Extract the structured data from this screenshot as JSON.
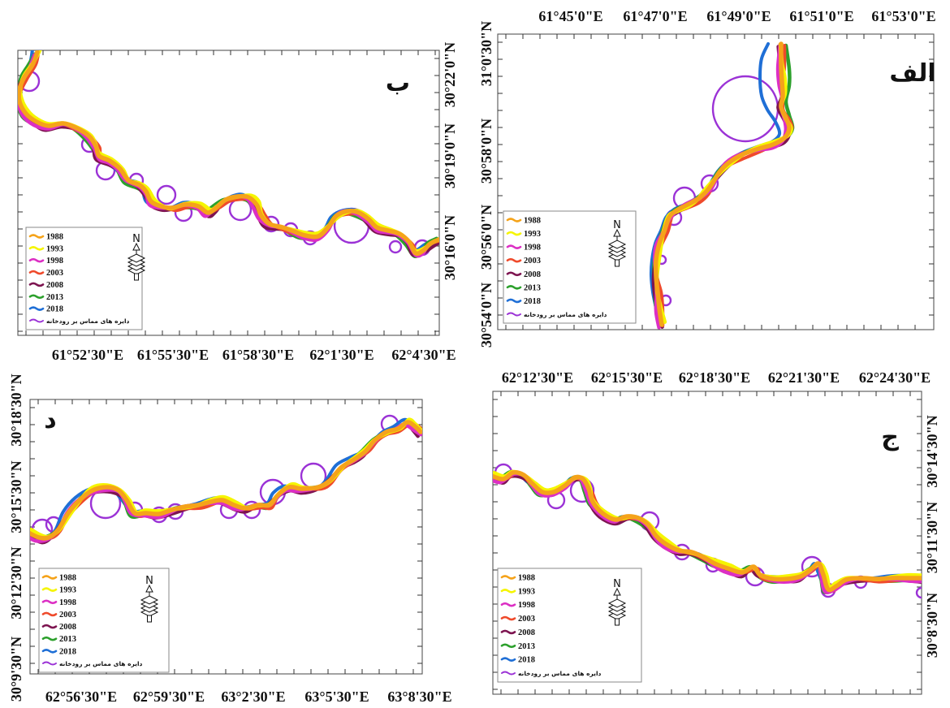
{
  "panels": [
    {
      "label": "الف",
      "x_tick_labels": [
        "61°45'0\"E",
        "61°47'0\"E",
        "61°49'0\"E",
        "61°51'0\"E",
        "61°53'0\"E"
      ],
      "y_tick_labels": [
        "31°0'30\"N",
        "30°58'0\"N",
        "30°56'0\"N",
        "30°54'0\"N"
      ]
    },
    {
      "label": "ب",
      "x_tick_labels": [
        "61°52'30\"E",
        "61°55'30\"E",
        "61°58'30\"E",
        "62°1'30\"E",
        "62°4'30\"E"
      ],
      "y_tick_labels": [
        "30°22'0\"N",
        "30°19'0\"N",
        "30°16'0\"N"
      ]
    },
    {
      "label": "ج",
      "x_tick_labels": [
        "62°12'30\"E",
        "62°15'30\"E",
        "62°18'30\"E",
        "62°21'30\"E",
        "62°24'30\"E"
      ],
      "y_tick_labels": [
        "30°14'30\"N",
        "30°11'30\"N",
        "30°8'30\"N"
      ]
    },
    {
      "label": "د",
      "x_tick_labels": [
        "62°56'30\"E",
        "62°59'30\"E",
        "63°2'30\"E",
        "63°5'30\"E",
        "63°8'30\"E"
      ],
      "y_tick_labels": [
        "30°18'30\"N",
        "30°15'30\"N",
        "30°12'30\"N",
        "30°9'30\"N"
      ]
    }
  ],
  "legend": {
    "items": [
      {
        "label": "1988",
        "color": "#f5a31a"
      },
      {
        "label": "1993",
        "color": "#f5f500"
      },
      {
        "label": "1998",
        "color": "#dc2fc4"
      },
      {
        "label": "2003",
        "color": "#ef4a2b"
      },
      {
        "label": "2008",
        "color": "#7d1450"
      },
      {
        "label": "2013",
        "color": "#2ca02c"
      },
      {
        "label": "2018",
        "color": "#1f6fd6"
      }
    ],
    "circles": {
      "label": "دایره های مماس بر رودخانه",
      "color": "#9b32d6"
    }
  },
  "north_arrow": {
    "label": "N",
    "icon": "north-arrow-icon"
  }
}
